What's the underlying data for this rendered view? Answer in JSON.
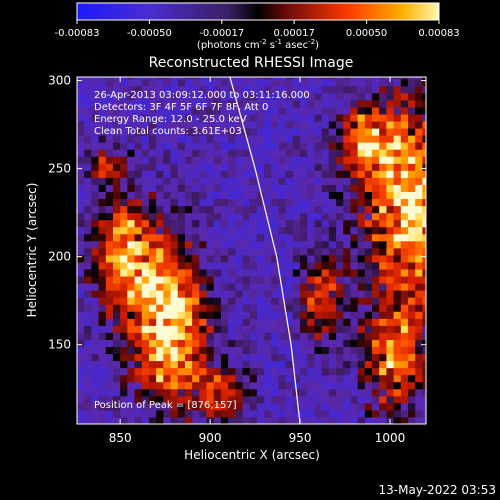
{
  "chart_data": {
    "type": "heatmap",
    "title": "Reconstructed RHESSI Image",
    "xlabel": "Heliocentric X (arcsec)",
    "ylabel": "Heliocentric Y (arcsec)",
    "xlim": [
      826,
      1020
    ],
    "ylim": [
      105,
      302
    ],
    "x_ticks": [
      850,
      900,
      950,
      1000
    ],
    "y_ticks": [
      150,
      200,
      250,
      300
    ],
    "colorbar": {
      "ticks": [
        "-0.00083",
        "-0.00050",
        "-0.00017",
        "0.00017",
        "0.00050",
        "0.00083"
      ],
      "unit_label": "(photons cm-2 s-1 asec-2)",
      "range": [
        -0.00083,
        0.00083
      ]
    },
    "annotations": [
      "26-Apr-2013 03:09:12.000 to 03:11:16.000",
      "Detectors: 3F 4F 5F 6F 7F 8F, Att 0",
      "Energy Range: 12.0 - 25.0 keV",
      "Clean    Total counts: 3.61E+03"
    ],
    "peak_label": "Position of Peak = [876,157]",
    "peak": [
      876,
      157
    ],
    "limb_curve": [
      [
        911,
        302
      ],
      [
        925,
        250
      ],
      [
        937,
        200
      ],
      [
        945,
        150
      ],
      [
        950,
        105
      ]
    ],
    "hot_regions": [
      {
        "x": 875,
        "y": 160,
        "sx": 14,
        "sy": 30,
        "amp": 1.0
      },
      {
        "x": 850,
        "y": 200,
        "sx": 12,
        "sy": 22,
        "amp": 0.75
      },
      {
        "x": 905,
        "y": 120,
        "sx": 10,
        "sy": 10,
        "amp": 0.55
      },
      {
        "x": 1010,
        "y": 225,
        "sx": 18,
        "sy": 40,
        "amp": 0.85
      },
      {
        "x": 985,
        "y": 265,
        "sx": 12,
        "sy": 14,
        "amp": 0.6
      },
      {
        "x": 960,
        "y": 175,
        "sx": 8,
        "sy": 16,
        "amp": 0.55
      },
      {
        "x": 1000,
        "y": 140,
        "sx": 12,
        "sy": 20,
        "amp": 0.6
      },
      {
        "x": 840,
        "y": 250,
        "sx": 8,
        "sy": 8,
        "amp": 0.35
      }
    ]
  },
  "footer": {
    "timestamp": "13-May-2022 03:53"
  }
}
